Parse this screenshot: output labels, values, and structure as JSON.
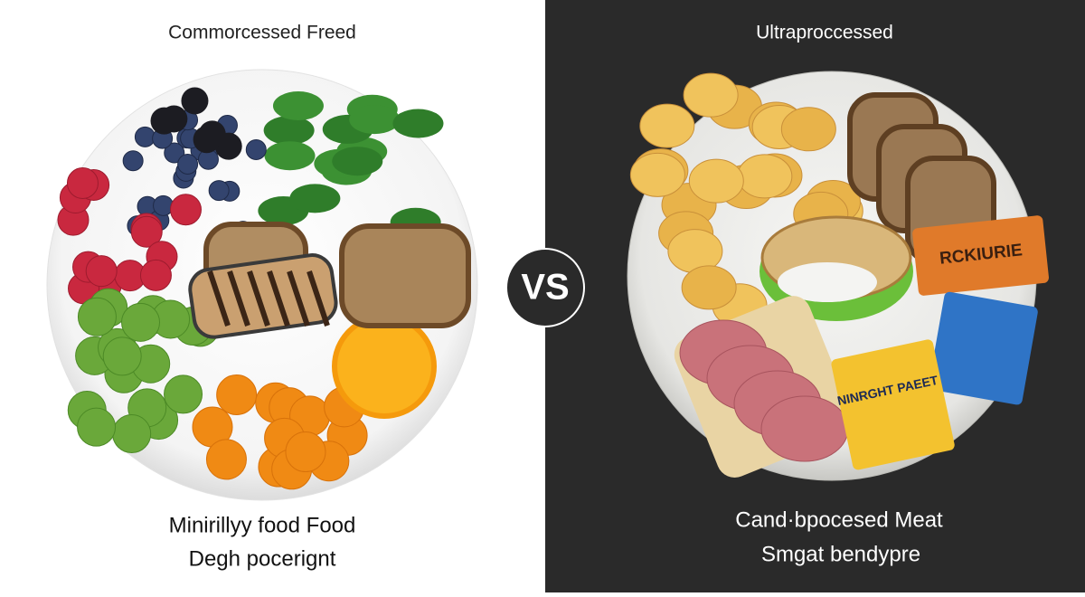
{
  "left": {
    "title": "Commorcessed Freed",
    "caption_line1": "Minirillyy food Food",
    "caption_line2": "Degh pocerignt"
  },
  "center": {
    "badge": "VS"
  },
  "right": {
    "title": "Ultraproccessed",
    "caption_line1": "Cand·bpocesed Meat",
    "caption_line2": "Smgat bendypre",
    "package1": "RCKIURIE",
    "package2": "NINRGHT PAEET"
  }
}
